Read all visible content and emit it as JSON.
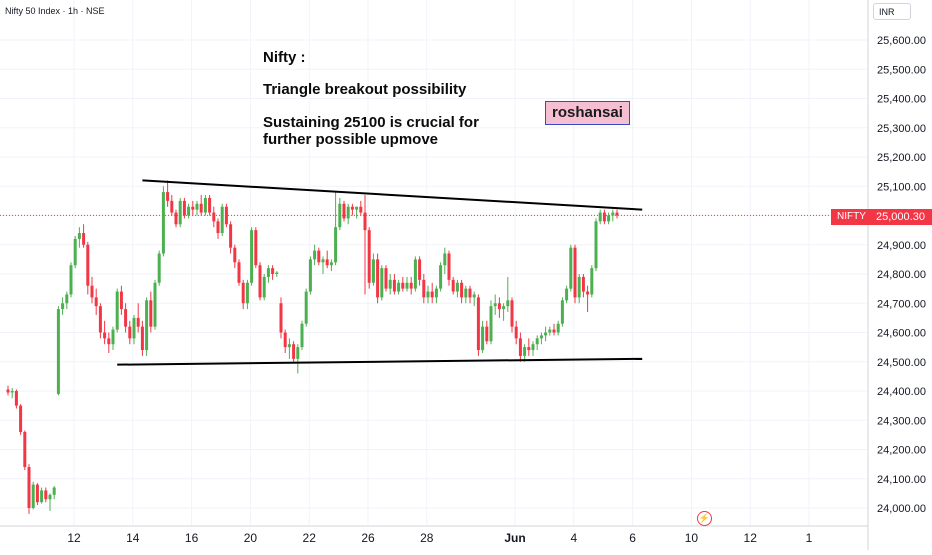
{
  "header": {
    "symbol_label": "Nifty 50 Index · 1h · NSE",
    "currency": "INR"
  },
  "annotations": {
    "title": "Nifty :",
    "line1": "Triangle breakout possibility",
    "line2": "Sustaining 25100 is crucial for further possible upmove",
    "author": "roshansai"
  },
  "price_marker": {
    "ticker": "NIFTY",
    "value_label": "25,000.30",
    "value": 25000.3
  },
  "colors": {
    "up": "#22ab94",
    "up_fill": "#4caf50",
    "down": "#f23645",
    "grid": "#f0f3fa",
    "axis_text": "#131722",
    "trendline": "#000000",
    "price_line": "#f23645"
  },
  "icons": {
    "event": "lightning-icon"
  },
  "chart_data": {
    "type": "candlestick",
    "title": "",
    "ylim": [
      23950,
      25700
    ],
    "y_ticks": [
      {
        "value": 24000,
        "label": "24,000.00"
      },
      {
        "value": 24100,
        "label": "24,100.00"
      },
      {
        "value": 24200,
        "label": "24,200.00"
      },
      {
        "value": 24300,
        "label": "24,300.00"
      },
      {
        "value": 24400,
        "label": "24,400.00"
      },
      {
        "value": 24500,
        "label": "24,500.00"
      },
      {
        "value": 24600,
        "label": "24,600.00"
      },
      {
        "value": 24700,
        "label": "24,700.00"
      },
      {
        "value": 24800,
        "label": "24,800.00"
      },
      {
        "value": 24900,
        "label": "24,900.00"
      },
      {
        "value": 25000,
        "label": "25,000.00"
      },
      {
        "value": 25100,
        "label": "25,100.00"
      },
      {
        "value": 25200,
        "label": "25,200.00"
      },
      {
        "value": 25300,
        "label": "25,300.00"
      },
      {
        "value": 25400,
        "label": "25,400.00"
      },
      {
        "value": 25500,
        "label": "25,500.00"
      },
      {
        "value": 25600,
        "label": "25,600.00"
      }
    ],
    "x_ticks": [
      {
        "label": "12",
        "bold": false,
        "slot": 10
      },
      {
        "label": "14",
        "bold": false,
        "slot": 24
      },
      {
        "label": "16",
        "bold": false,
        "slot": 38
      },
      {
        "label": "20",
        "bold": false,
        "slot": 52
      },
      {
        "label": "22",
        "bold": false,
        "slot": 66
      },
      {
        "label": "26",
        "bold": false,
        "slot": 80
      },
      {
        "label": "28",
        "bold": false,
        "slot": 94
      },
      {
        "label": "Jun",
        "bold": true,
        "slot": 115
      },
      {
        "label": "4",
        "bold": false,
        "slot": 129
      },
      {
        "label": "6",
        "bold": false,
        "slot": 143
      },
      {
        "label": "10",
        "bold": false,
        "slot": 157
      },
      {
        "label": "12",
        "bold": false,
        "slot": 171
      },
      {
        "label": "1",
        "bold": false,
        "slot": 185
      }
    ],
    "candles": [
      {
        "o": 24405,
        "h": 24418,
        "l": 24385,
        "c": 24395
      },
      {
        "o": 24395,
        "h": 24410,
        "l": 24375,
        "c": 24400
      },
      {
        "o": 24400,
        "h": 24405,
        "l": 24340,
        "c": 24350
      },
      {
        "o": 24350,
        "h": 24355,
        "l": 24250,
        "c": 24260
      },
      {
        "o": 24260,
        "h": 24265,
        "l": 24130,
        "c": 24140
      },
      {
        "o": 24140,
        "h": 24150,
        "l": 23980,
        "c": 24000
      },
      {
        "o": 24000,
        "h": 24090,
        "l": 23995,
        "c": 24080
      },
      {
        "o": 24080,
        "h": 24085,
        "l": 24010,
        "c": 24020
      },
      {
        "o": 24020,
        "h": 24070,
        "l": 24015,
        "c": 24060
      },
      {
        "o": 24060,
        "h": 24070,
        "l": 24020,
        "c": 24030
      },
      {
        "o": 24030,
        "h": 24050,
        "l": 23990,
        "c": 24045
      },
      {
        "o": 24045,
        "h": 24075,
        "l": 24030,
        "c": 24070
      },
      {
        "o": 24390,
        "h": 24690,
        "l": 24385,
        "c": 24680
      },
      {
        "o": 24680,
        "h": 24720,
        "l": 24660,
        "c": 24700
      },
      {
        "o": 24700,
        "h": 24740,
        "l": 24680,
        "c": 24730
      },
      {
        "o": 24730,
        "h": 24840,
        "l": 24720,
        "c": 24830
      },
      {
        "o": 24830,
        "h": 24930,
        "l": 24820,
        "c": 24920
      },
      {
        "o": 24920,
        "h": 24960,
        "l": 24890,
        "c": 24940
      },
      {
        "o": 24940,
        "h": 24970,
        "l": 24890,
        "c": 24900
      },
      {
        "o": 24900,
        "h": 24910,
        "l": 24730,
        "c": 24760
      },
      {
        "o": 24760,
        "h": 24790,
        "l": 24700,
        "c": 24720
      },
      {
        "o": 24720,
        "h": 24750,
        "l": 24660,
        "c": 24690
      },
      {
        "o": 24690,
        "h": 24700,
        "l": 24580,
        "c": 24600
      },
      {
        "o": 24600,
        "h": 24640,
        "l": 24560,
        "c": 24580
      },
      {
        "o": 24580,
        "h": 24600,
        "l": 24530,
        "c": 24560
      },
      {
        "o": 24560,
        "h": 24620,
        "l": 24540,
        "c": 24610
      },
      {
        "o": 24610,
        "h": 24750,
        "l": 24600,
        "c": 24740
      },
      {
        "o": 24740,
        "h": 24760,
        "l": 24660,
        "c": 24680
      },
      {
        "o": 24680,
        "h": 24700,
        "l": 24600,
        "c": 24620
      },
      {
        "o": 24620,
        "h": 24640,
        "l": 24560,
        "c": 24580
      },
      {
        "o": 24580,
        "h": 24660,
        "l": 24560,
        "c": 24650
      },
      {
        "o": 24650,
        "h": 24700,
        "l": 24600,
        "c": 24620
      },
      {
        "o": 24620,
        "h": 24640,
        "l": 24520,
        "c": 24540
      },
      {
        "o": 24540,
        "h": 24720,
        "l": 24520,
        "c": 24710
      },
      {
        "o": 24710,
        "h": 24740,
        "l": 24600,
        "c": 24620
      },
      {
        "o": 24620,
        "h": 24780,
        "l": 24610,
        "c": 24770
      },
      {
        "o": 24770,
        "h": 24880,
        "l": 24760,
        "c": 24870
      },
      {
        "o": 24870,
        "h": 25100,
        "l": 24860,
        "c": 25080
      },
      {
        "o": 25080,
        "h": 25120,
        "l": 25030,
        "c": 25050
      },
      {
        "o": 25050,
        "h": 25070,
        "l": 25000,
        "c": 25010
      },
      {
        "o": 25010,
        "h": 25020,
        "l": 24960,
        "c": 24970
      },
      {
        "o": 24970,
        "h": 25060,
        "l": 24960,
        "c": 25050
      },
      {
        "o": 25050,
        "h": 25060,
        "l": 24990,
        "c": 25000
      },
      {
        "o": 25000,
        "h": 25040,
        "l": 24990,
        "c": 25030
      },
      {
        "o": 25030,
        "h": 25050,
        "l": 25000,
        "c": 25020
      },
      {
        "o": 25020,
        "h": 25050,
        "l": 25000,
        "c": 25040
      },
      {
        "o": 25040,
        "h": 25070,
        "l": 25000,
        "c": 25010
      },
      {
        "o": 25010,
        "h": 25070,
        "l": 25000,
        "c": 25060
      },
      {
        "o": 25060,
        "h": 25070,
        "l": 25000,
        "c": 25010
      },
      {
        "o": 25010,
        "h": 25030,
        "l": 24960,
        "c": 24980
      },
      {
        "o": 24980,
        "h": 24990,
        "l": 24920,
        "c": 24940
      },
      {
        "o": 24940,
        "h": 25040,
        "l": 24930,
        "c": 25030
      },
      {
        "o": 25030,
        "h": 25040,
        "l": 24960,
        "c": 24970
      },
      {
        "o": 24970,
        "h": 24980,
        "l": 24870,
        "c": 24890
      },
      {
        "o": 24890,
        "h": 24900,
        "l": 24820,
        "c": 24840
      },
      {
        "o": 24840,
        "h": 24850,
        "l": 24760,
        "c": 24770
      },
      {
        "o": 24770,
        "h": 24780,
        "l": 24680,
        "c": 24700
      },
      {
        "o": 24700,
        "h": 24780,
        "l": 24680,
        "c": 24770
      },
      {
        "o": 24770,
        "h": 24960,
        "l": 24760,
        "c": 24950
      },
      {
        "o": 24950,
        "h": 24960,
        "l": 24820,
        "c": 24830
      },
      {
        "o": 24830,
        "h": 24840,
        "l": 24710,
        "c": 24720
      },
      {
        "o": 24720,
        "h": 24800,
        "l": 24710,
        "c": 24790
      },
      {
        "o": 24790,
        "h": 24830,
        "l": 24770,
        "c": 24820
      },
      {
        "o": 24820,
        "h": 24830,
        "l": 24780,
        "c": 24800
      },
      {
        "o": 24800,
        "h": 24810,
        "l": 24790,
        "c": 24805
      },
      {
        "o": 24700,
        "h": 24720,
        "l": 24580,
        "c": 24600
      },
      {
        "o": 24600,
        "h": 24610,
        "l": 24530,
        "c": 24550
      },
      {
        "o": 24550,
        "h": 24580,
        "l": 24510,
        "c": 24560
      },
      {
        "o": 24560,
        "h": 24570,
        "l": 24500,
        "c": 24510
      },
      {
        "o": 24510,
        "h": 24560,
        "l": 24460,
        "c": 24550
      },
      {
        "o": 24550,
        "h": 24640,
        "l": 24540,
        "c": 24630
      },
      {
        "o": 24630,
        "h": 24750,
        "l": 24620,
        "c": 24740
      },
      {
        "o": 24740,
        "h": 24860,
        "l": 24730,
        "c": 24850
      },
      {
        "o": 24850,
        "h": 24900,
        "l": 24830,
        "c": 24880
      },
      {
        "o": 24880,
        "h": 24890,
        "l": 24830,
        "c": 24840
      },
      {
        "o": 24840,
        "h": 24860,
        "l": 24800,
        "c": 24850
      },
      {
        "o": 24850,
        "h": 24880,
        "l": 24820,
        "c": 24830
      },
      {
        "o": 24830,
        "h": 24850,
        "l": 24810,
        "c": 24840
      },
      {
        "o": 24840,
        "h": 25080,
        "l": 24830,
        "c": 24960
      },
      {
        "o": 24960,
        "h": 25060,
        "l": 24950,
        "c": 25040
      },
      {
        "o": 25040,
        "h": 25050,
        "l": 24980,
        "c": 24990
      },
      {
        "o": 24990,
        "h": 25040,
        "l": 24970,
        "c": 25030
      },
      {
        "o": 25030,
        "h": 25040,
        "l": 25000,
        "c": 25020
      },
      {
        "o": 25020,
        "h": 25030,
        "l": 24990,
        "c": 25030
      },
      {
        "o": 25030,
        "h": 25050,
        "l": 25000,
        "c": 25010
      },
      {
        "o": 25010,
        "h": 25070,
        "l": 24730,
        "c": 24950
      },
      {
        "o": 24950,
        "h": 24960,
        "l": 24750,
        "c": 24770
      },
      {
        "o": 24770,
        "h": 24870,
        "l": 24760,
        "c": 24850
      },
      {
        "o": 24850,
        "h": 24870,
        "l": 24700,
        "c": 24720
      },
      {
        "o": 24720,
        "h": 24830,
        "l": 24710,
        "c": 24820
      },
      {
        "o": 24820,
        "h": 24830,
        "l": 24740,
        "c": 24750
      },
      {
        "o": 24750,
        "h": 24800,
        "l": 24730,
        "c": 24780
      },
      {
        "o": 24780,
        "h": 24800,
        "l": 24730,
        "c": 24740
      },
      {
        "o": 24740,
        "h": 24780,
        "l": 24730,
        "c": 24770
      },
      {
        "o": 24770,
        "h": 24790,
        "l": 24740,
        "c": 24750
      },
      {
        "o": 24750,
        "h": 24790,
        "l": 24740,
        "c": 24770
      },
      {
        "o": 24770,
        "h": 24790,
        "l": 24730,
        "c": 24750
      },
      {
        "o": 24750,
        "h": 24860,
        "l": 24740,
        "c": 24850
      },
      {
        "o": 24850,
        "h": 24860,
        "l": 24760,
        "c": 24780
      },
      {
        "o": 24780,
        "h": 24800,
        "l": 24700,
        "c": 24720
      },
      {
        "o": 24720,
        "h": 24760,
        "l": 24700,
        "c": 24740
      },
      {
        "o": 24740,
        "h": 24770,
        "l": 24700,
        "c": 24720
      },
      {
        "o": 24720,
        "h": 24760,
        "l": 24700,
        "c": 24750
      },
      {
        "o": 24750,
        "h": 24840,
        "l": 24740,
        "c": 24830
      },
      {
        "o": 24830,
        "h": 24890,
        "l": 24800,
        "c": 24870
      },
      {
        "o": 24870,
        "h": 24880,
        "l": 24760,
        "c": 24780
      },
      {
        "o": 24780,
        "h": 24790,
        "l": 24730,
        "c": 24740
      },
      {
        "o": 24740,
        "h": 24780,
        "l": 24720,
        "c": 24770
      },
      {
        "o": 24770,
        "h": 24780,
        "l": 24700,
        "c": 24720
      },
      {
        "o": 24720,
        "h": 24760,
        "l": 24700,
        "c": 24750
      },
      {
        "o": 24750,
        "h": 24760,
        "l": 24700,
        "c": 24720
      },
      {
        "o": 24720,
        "h": 24740,
        "l": 24690,
        "c": 24730
      },
      {
        "o": 24720,
        "h": 24730,
        "l": 24520,
        "c": 24540
      },
      {
        "o": 24540,
        "h": 24640,
        "l": 24530,
        "c": 24620
      },
      {
        "o": 24620,
        "h": 24640,
        "l": 24560,
        "c": 24570
      },
      {
        "o": 24570,
        "h": 24710,
        "l": 24560,
        "c": 24690
      },
      {
        "o": 24690,
        "h": 24730,
        "l": 24660,
        "c": 24700
      },
      {
        "o": 24700,
        "h": 24720,
        "l": 24650,
        "c": 24680
      },
      {
        "o": 24680,
        "h": 24700,
        "l": 24640,
        "c": 24690
      },
      {
        "o": 24690,
        "h": 24790,
        "l": 24670,
        "c": 24710
      },
      {
        "o": 24710,
        "h": 24720,
        "l": 24600,
        "c": 24620
      },
      {
        "o": 24620,
        "h": 24640,
        "l": 24560,
        "c": 24580
      },
      {
        "o": 24580,
        "h": 24600,
        "l": 24500,
        "c": 24520
      },
      {
        "o": 24520,
        "h": 24560,
        "l": 24500,
        "c": 24550
      },
      {
        "o": 24550,
        "h": 24580,
        "l": 24520,
        "c": 24540
      },
      {
        "o": 24540,
        "h": 24570,
        "l": 24520,
        "c": 24560
      },
      {
        "o": 24560,
        "h": 24590,
        "l": 24540,
        "c": 24580
      },
      {
        "o": 24580,
        "h": 24600,
        "l": 24560,
        "c": 24590
      },
      {
        "o": 24590,
        "h": 24620,
        "l": 24570,
        "c": 24600
      },
      {
        "o": 24600,
        "h": 24620,
        "l": 24590,
        "c": 24610
      },
      {
        "o": 24610,
        "h": 24630,
        "l": 24590,
        "c": 24600
      },
      {
        "o": 24600,
        "h": 24640,
        "l": 24590,
        "c": 24630
      },
      {
        "o": 24630,
        "h": 24720,
        "l": 24620,
        "c": 24710
      },
      {
        "o": 24710,
        "h": 24760,
        "l": 24700,
        "c": 24750
      },
      {
        "o": 24750,
        "h": 24900,
        "l": 24740,
        "c": 24890
      },
      {
        "o": 24890,
        "h": 24900,
        "l": 24700,
        "c": 24720
      },
      {
        "o": 24720,
        "h": 24800,
        "l": 24700,
        "c": 24790
      },
      {
        "o": 24790,
        "h": 24800,
        "l": 24720,
        "c": 24740
      },
      {
        "o": 24740,
        "h": 24760,
        "l": 24670,
        "c": 24730
      },
      {
        "o": 24730,
        "h": 24830,
        "l": 24720,
        "c": 24820
      },
      {
        "o": 24820,
        "h": 24990,
        "l": 24810,
        "c": 24980
      },
      {
        "o": 24980,
        "h": 25020,
        "l": 24970,
        "c": 25010
      },
      {
        "o": 25010,
        "h": 25020,
        "l": 24970,
        "c": 24980
      },
      {
        "o": 24980,
        "h": 25010,
        "l": 24970,
        "c": 25000
      },
      {
        "o": 25000,
        "h": 25020,
        "l": 24980,
        "c": 25010
      },
      {
        "o": 25010,
        "h": 25020,
        "l": 24990,
        "c": 25000
      }
    ],
    "trendlines": [
      {
        "name": "upper-trendline",
        "from": {
          "slot": 32,
          "value": 25120
        },
        "to": {
          "slot": 151,
          "value": 25020
        }
      },
      {
        "name": "lower-trendline",
        "from": {
          "slot": 26,
          "value": 24490
        },
        "to": {
          "slot": 151,
          "value": 24510
        }
      }
    ]
  }
}
